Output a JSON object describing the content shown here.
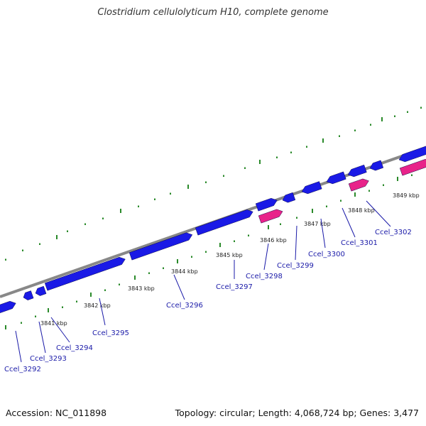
{
  "title": "Clostridium cellulolyticum H10, complete genome",
  "footer": {
    "accession": "Accession: NC_011898",
    "stats": "Topology: circular; Length: 4,068,724 bp; Genes: 3,477"
  },
  "colors": {
    "backbone": "#888888",
    "cds_forward": "#1a1ae6",
    "cds_reverse": "#e8238a",
    "ticks": "#2a8a2a",
    "gene_label": "#1a1aa8",
    "leader": "#1a1aa8"
  },
  "kbp_labels": [
    "3841 kbp",
    "3842 kbp",
    "3843 kbp",
    "3844 kbp",
    "3845 kbp",
    "3846 kbp",
    "3847 kbp",
    "3848 kbp",
    "3849 kbp"
  ],
  "genes": [
    "Ccel_3292",
    "Ccel_3293",
    "Ccel_3294",
    "Ccel_3295",
    "Ccel_3296",
    "Ccel_3297",
    "Ccel_3298",
    "Ccel_3299",
    "Ccel_3300",
    "Ccel_3301",
    "Ccel_3302"
  ]
}
